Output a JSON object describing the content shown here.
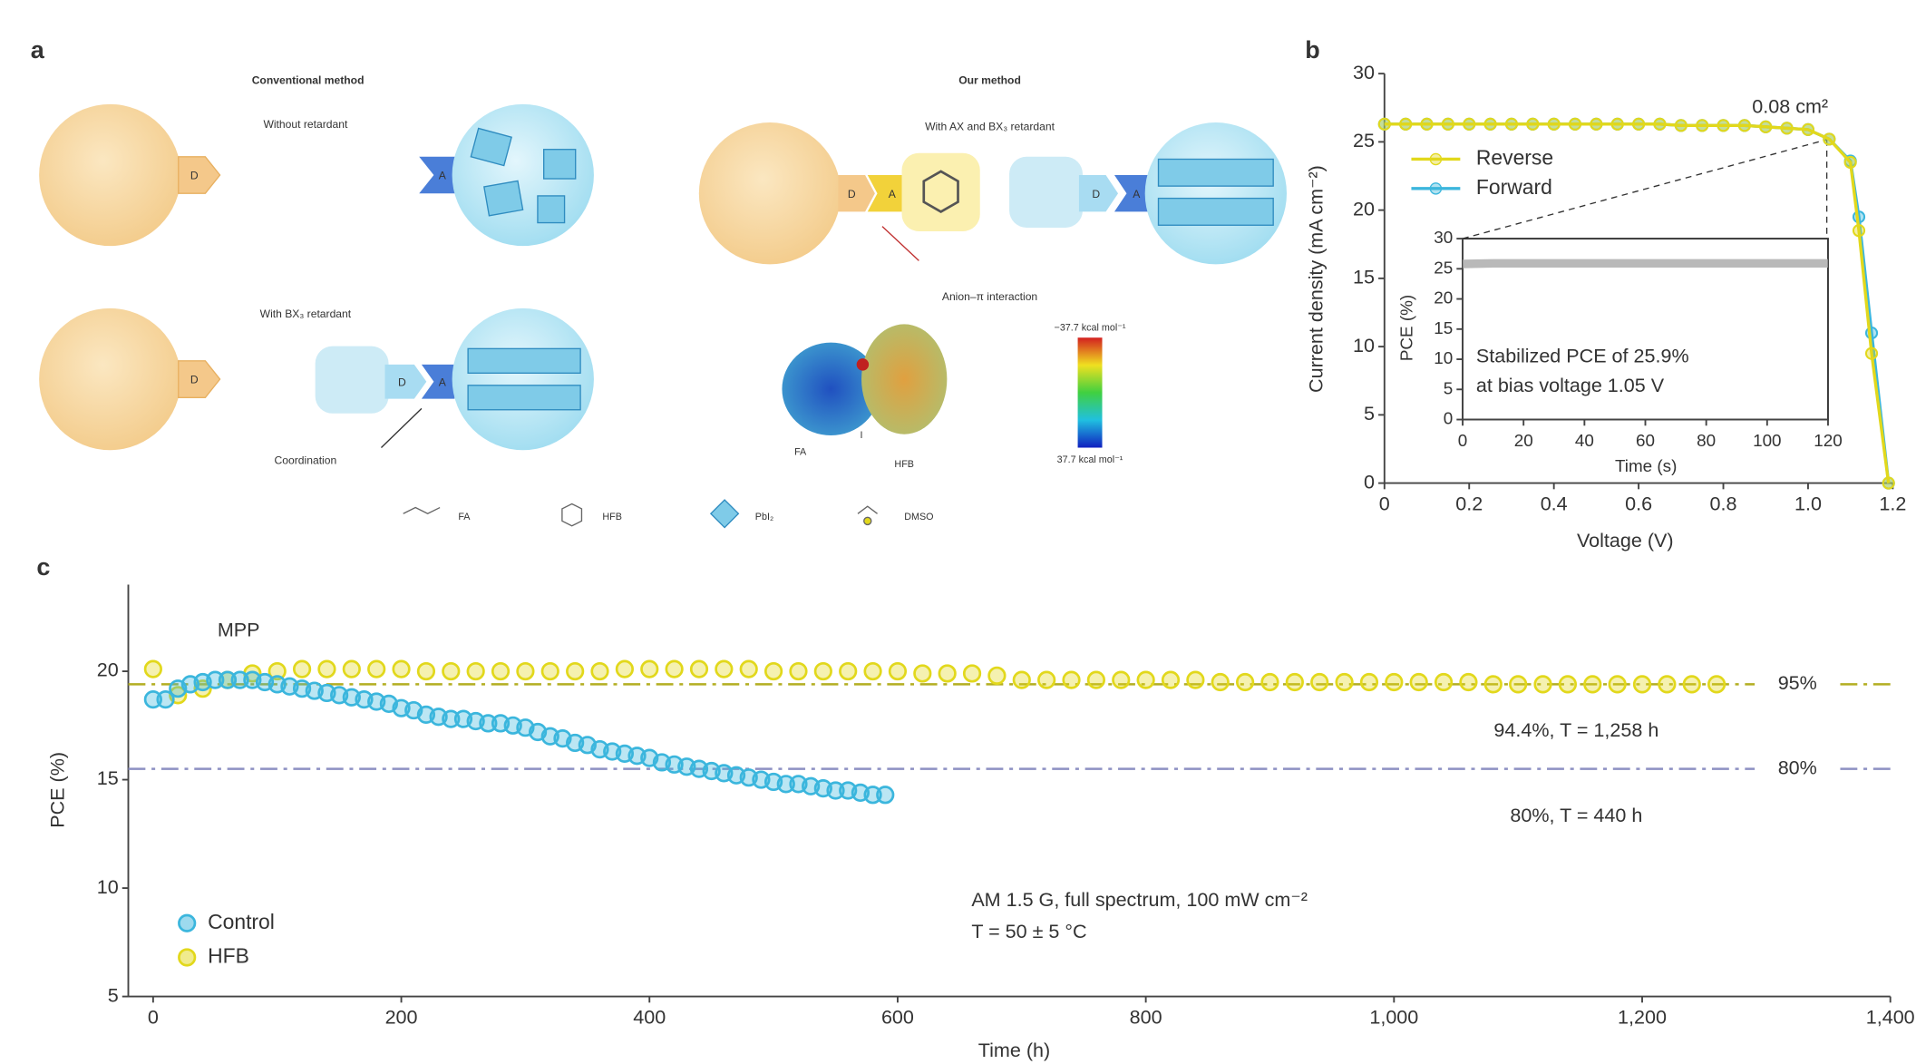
{
  "panel_a": {
    "label": "a",
    "conventional_title": "Conventional method",
    "our_title": "Our method",
    "without": "Without retardant",
    "with_bx": "With BX₃ retardant",
    "with_ax": "With AX and BX₃ retardant",
    "coordination": "Coordination",
    "anion": "Anion–π interaction",
    "donor": "D",
    "acceptor": "A",
    "esp_fa": "FA",
    "esp_i": "I",
    "esp_hfb": "HFB",
    "scale_top": "−37.7 kcal mol⁻¹",
    "scale_bottom": "37.7 kcal mol⁻¹",
    "legend": [
      "FA",
      "HFB",
      "PbI₂",
      "DMSO"
    ]
  },
  "chart_data": [
    {
      "type": "line",
      "panel": "b",
      "x_label": "Voltage (V)",
      "y_label": "Current density (mA cm⁻²)",
      "annotation": "0.08 cm²",
      "x": [
        0,
        0.05,
        0.1,
        0.15,
        0.2,
        0.25,
        0.3,
        0.35,
        0.4,
        0.45,
        0.5,
        0.55,
        0.6,
        0.65,
        0.7,
        0.75,
        0.8,
        0.85,
        0.9,
        0.95,
        1.0,
        1.05,
        1.1,
        1.12,
        1.15,
        1.19
      ],
      "series": [
        {
          "name": "Reverse",
          "color": "#e2d81c",
          "values": [
            26.3,
            26.3,
            26.3,
            26.3,
            26.3,
            26.3,
            26.3,
            26.3,
            26.3,
            26.3,
            26.3,
            26.3,
            26.3,
            26.3,
            26.2,
            26.2,
            26.2,
            26.2,
            26.1,
            26.0,
            25.9,
            25.2,
            23.5,
            18.5,
            9.5,
            0
          ]
        },
        {
          "name": "Forward",
          "color": "#3bb6dd",
          "values": [
            26.3,
            26.3,
            26.3,
            26.3,
            26.3,
            26.3,
            26.3,
            26.3,
            26.3,
            26.3,
            26.3,
            26.3,
            26.3,
            26.3,
            26.2,
            26.2,
            26.2,
            26.2,
            26.1,
            26.0,
            25.9,
            25.2,
            23.6,
            19.5,
            11,
            0
          ]
        }
      ],
      "xlim": [
        0,
        1.2
      ],
      "ylim": [
        0,
        30
      ],
      "xticks": [
        0,
        0.2,
        0.4,
        0.6,
        0.8,
        {
          "value": 1,
          "label": "1.0"
        },
        1.2
      ],
      "yticks": [
        0,
        5,
        10,
        15,
        20,
        25,
        30
      ]
    },
    {
      "type": "band",
      "x_label": "Time (s)",
      "y_label": "PCE (%)",
      "annotation_lines": [
        "Stabilized PCE of 25.9%",
        "at bias voltage 1.05 V"
      ],
      "x": [
        0,
        10,
        20,
        30,
        40,
        50,
        60,
        70,
        80,
        90,
        100,
        110,
        120
      ],
      "values": [
        25.8,
        25.9,
        25.9,
        25.9,
        25.9,
        25.9,
        25.9,
        25.9,
        25.9,
        25.9,
        25.9,
        25.9,
        25.9
      ],
      "color": "#a8a8a8",
      "xlim": [
        0,
        120
      ],
      "ylim": [
        0,
        30
      ],
      "xticks": [
        0,
        20,
        40,
        60,
        80,
        100,
        120
      ],
      "yticks": [
        0,
        5,
        10,
        15,
        20,
        25,
        30
      ]
    },
    {
      "type": "scatter",
      "panel": "c",
      "x_label": "Time (h)",
      "y_label": "PCE (%)",
      "annotations": [
        "MPP",
        "94.4%, T = 1,258 h",
        "80%, T = 440 h",
        "AM 1.5 G, full spectrum, 100 mW cm⁻²",
        "T = 50 ± 5 °C"
      ],
      "reference_lines": [
        {
          "value": 19.4,
          "label": "95%",
          "color": "#b3ae22"
        },
        {
          "value": 15.5,
          "label": "80%",
          "color": "#8d90c2"
        }
      ],
      "series": [
        {
          "name": "Control",
          "color": "#3bb6dd",
          "x": [
            0,
            10,
            20,
            30,
            40,
            50,
            60,
            70,
            80,
            90,
            100,
            110,
            120,
            130,
            140,
            150,
            160,
            170,
            180,
            190,
            200,
            210,
            220,
            230,
            240,
            250,
            260,
            270,
            280,
            290,
            300,
            310,
            320,
            330,
            340,
            350,
            360,
            370,
            380,
            390,
            400,
            410,
            420,
            430,
            440,
            450,
            460,
            470,
            480,
            490,
            500,
            510,
            520,
            530,
            540,
            550,
            560,
            570,
            580,
            590
          ],
          "values": [
            18.7,
            18.7,
            19.2,
            19.4,
            19.5,
            19.6,
            19.6,
            19.6,
            19.6,
            19.5,
            19.4,
            19.3,
            19.2,
            19.1,
            19.0,
            18.9,
            18.8,
            18.7,
            18.6,
            18.5,
            18.3,
            18.2,
            18.0,
            17.9,
            17.8,
            17.8,
            17.7,
            17.6,
            17.6,
            17.5,
            17.4,
            17.2,
            17.0,
            16.9,
            16.7,
            16.6,
            16.4,
            16.3,
            16.2,
            16.1,
            16.0,
            15.8,
            15.7,
            15.6,
            15.5,
            15.4,
            15.3,
            15.2,
            15.1,
            15.0,
            14.9,
            14.8,
            14.8,
            14.7,
            14.6,
            14.5,
            14.5,
            14.4,
            14.3,
            14.3
          ]
        },
        {
          "name": "HFB",
          "color": "#e2d81c",
          "x": [
            0,
            20,
            40,
            60,
            80,
            100,
            120,
            140,
            160,
            180,
            200,
            220,
            240,
            260,
            280,
            300,
            320,
            340,
            360,
            380,
            400,
            420,
            440,
            460,
            480,
            500,
            520,
            540,
            560,
            580,
            600,
            620,
            640,
            660,
            680,
            700,
            720,
            740,
            760,
            780,
            800,
            820,
            840,
            860,
            880,
            900,
            920,
            940,
            960,
            980,
            1000,
            1020,
            1040,
            1060,
            1080,
            1100,
            1120,
            1140,
            1160,
            1180,
            1200,
            1220,
            1240,
            1260
          ],
          "values": [
            20.1,
            18.9,
            19.2,
            19.6,
            19.9,
            20.0,
            20.1,
            20.1,
            20.1,
            20.1,
            20.1,
            20.0,
            20.0,
            20.0,
            20.0,
            20.0,
            20.0,
            20.0,
            20.0,
            20.1,
            20.1,
            20.1,
            20.1,
            20.1,
            20.1,
            20.0,
            20.0,
            20.0,
            20.0,
            20.0,
            20.0,
            19.9,
            19.9,
            19.9,
            19.8,
            19.6,
            19.6,
            19.6,
            19.6,
            19.6,
            19.6,
            19.6,
            19.6,
            19.5,
            19.5,
            19.5,
            19.5,
            19.5,
            19.5,
            19.5,
            19.5,
            19.5,
            19.5,
            19.5,
            19.4,
            19.4,
            19.4,
            19.4,
            19.4,
            19.4,
            19.4,
            19.4,
            19.4,
            19.4
          ]
        }
      ],
      "xlim": [
        -20,
        1400
      ],
      "ylim": [
        5,
        24
      ],
      "xticks": [
        0,
        200,
        400,
        600,
        800,
        {
          "value": 1000,
          "label": "1,000"
        },
        {
          "value": 1200,
          "label": "1,200"
        },
        {
          "value": 1400,
          "label": "1,400"
        }
      ],
      "yticks": [
        5,
        10,
        15,
        20
      ]
    }
  ]
}
